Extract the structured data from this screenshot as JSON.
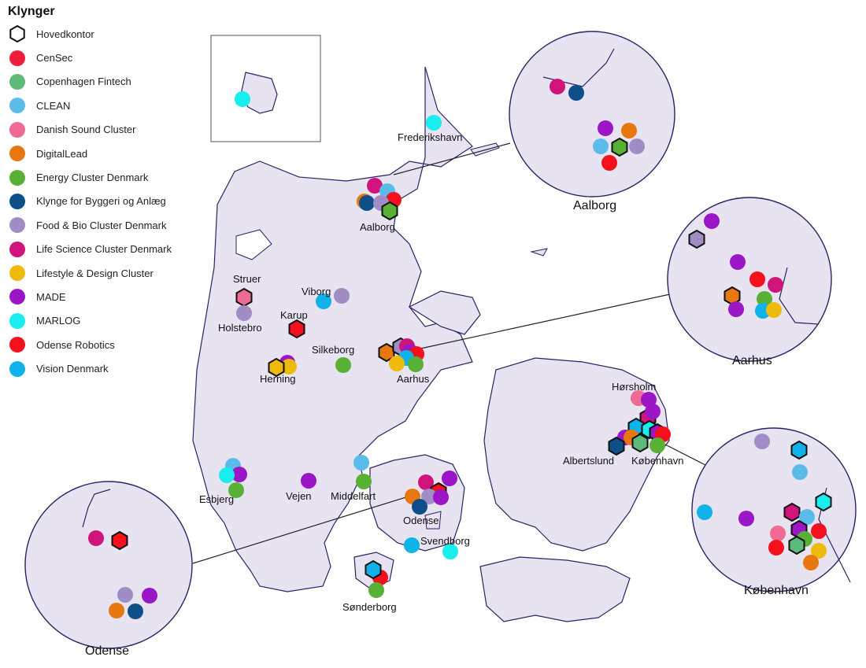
{
  "legend": {
    "title": "Klynger",
    "items": [
      {
        "key": "hq",
        "label": "Hovedkontor",
        "shape": "hexagon",
        "color": "#ffffff"
      },
      {
        "key": "cs",
        "label": "CenSec",
        "color": "#ef1c3a"
      },
      {
        "key": "cf",
        "label": "Copenhagen Fintech",
        "color": "#5dbb7a"
      },
      {
        "key": "cl",
        "label": "CLEAN",
        "color": "#5bbcea"
      },
      {
        "key": "ds",
        "label": "Danish Sound Cluster",
        "color": "#f06b93"
      },
      {
        "key": "dl",
        "label": "DigitalLead",
        "color": "#e8770f"
      },
      {
        "key": "ec",
        "label": "Energy Cluster Denmark",
        "color": "#58b134"
      },
      {
        "key": "kb",
        "label": "Klynge for Byggeri og Anlæg",
        "color": "#0e4f8a"
      },
      {
        "key": "fb",
        "label": "Food & Bio Cluster Denmark",
        "color": "#a08dc6"
      },
      {
        "key": "ls",
        "label": "Life Science Cluster Denmark",
        "color": "#d0147c"
      },
      {
        "key": "ld",
        "label": "Lifestyle & Design Cluster",
        "color": "#eebb0d"
      },
      {
        "key": "ma",
        "label": "MADE",
        "color": "#9a16c7"
      },
      {
        "key": "ml",
        "label": "MARLOG",
        "color": "#19eeee"
      },
      {
        "key": "or",
        "label": "Odense Robotics",
        "color": "#f4101c"
      },
      {
        "key": "vd",
        "label": "Vision Denmark",
        "color": "#10b2ea"
      }
    ]
  },
  "cities": [
    {
      "name": "Frederikshavn"
    },
    {
      "name": "Aalborg"
    },
    {
      "name": "Struer"
    },
    {
      "name": "Viborg"
    },
    {
      "name": "Holstebro"
    },
    {
      "name": "Karup"
    },
    {
      "name": "Silkeborg"
    },
    {
      "name": "Herning"
    },
    {
      "name": "Aarhus"
    },
    {
      "name": "Hørsholm"
    },
    {
      "name": "Albertslund"
    },
    {
      "name": "København"
    },
    {
      "name": "Esbjerg"
    },
    {
      "name": "Vejen"
    },
    {
      "name": "Middelfart"
    },
    {
      "name": "Odense"
    },
    {
      "name": "Svendborg"
    },
    {
      "name": "Sønderborg"
    }
  ],
  "zoom_insets": [
    {
      "name": "Aalborg"
    },
    {
      "name": "Aarhus"
    },
    {
      "name": "København"
    },
    {
      "name": "Odense"
    }
  ]
}
